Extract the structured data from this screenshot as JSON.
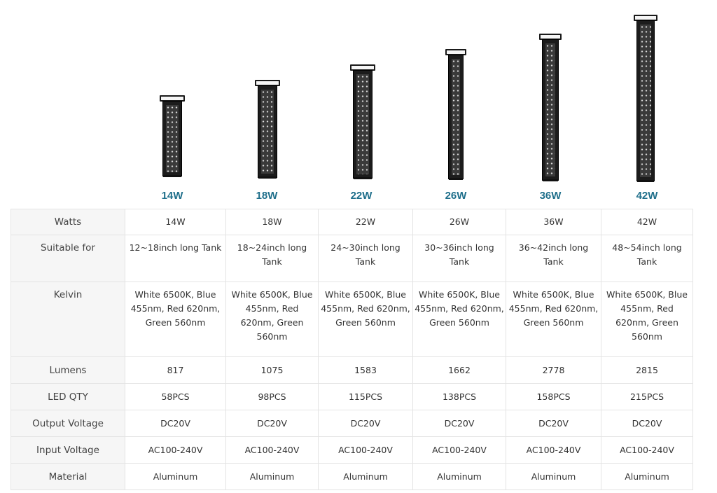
{
  "products": [
    {
      "label": "14W"
    },
    {
      "label": "18W"
    },
    {
      "label": "22W"
    },
    {
      "label": "26W"
    },
    {
      "label": "36W"
    },
    {
      "label": "42W"
    }
  ],
  "table": {
    "rows": [
      {
        "header": "Watts",
        "values": [
          "14W",
          "18W",
          "22W",
          "26W",
          "36W",
          "42W"
        ]
      },
      {
        "header": "Suitable for",
        "values": [
          "12~18inch long Tank",
          "18~24inch long Tank",
          "24~30inch long Tank",
          "30~36inch long Tank",
          "36~42inch long Tank",
          "48~54inch long Tank"
        ]
      },
      {
        "header": "Kelvin",
        "values": [
          "White 6500K, Blue 455nm, Red 620nm, Green 560nm",
          "White 6500K, Blue 455nm, Red 620nm, Green 560nm",
          "White 6500K, Blue 455nm, Red 620nm, Green 560nm",
          "White 6500K, Blue 455nm, Red 620nm, Green 560nm",
          "White 6500K, Blue 455nm, Red 620nm, Green 560nm",
          "White 6500K, Blue 455nm, Red 620nm, Green 560nm"
        ]
      },
      {
        "header": "Lumens",
        "values": [
          "817",
          "1075",
          "1583",
          "1662",
          "2778",
          "2815"
        ]
      },
      {
        "header": "LED QTY",
        "values": [
          "58PCS",
          "98PCS",
          "115PCS",
          "138PCS",
          "158PCS",
          "215PCS"
        ]
      },
      {
        "header": "Output Voltage",
        "values": [
          "DC20V",
          "DC20V",
          "DC20V",
          "DC20V",
          "DC20V",
          "DC20V"
        ]
      },
      {
        "header": "Input Voltage",
        "values": [
          "AC100-240V",
          "AC100-240V",
          "AC100-240V",
          "AC100-240V",
          "AC100-240V",
          "AC100-240V"
        ]
      },
      {
        "header": "Material",
        "values": [
          "Aluminum",
          "Aluminum",
          "Aluminum",
          "Aluminum",
          "Aluminum",
          "Aluminum"
        ]
      }
    ]
  },
  "colors": {
    "label_accent": "#1f6f8b",
    "header_bg": "#f6f6f6",
    "border": "#e4e4e4"
  }
}
